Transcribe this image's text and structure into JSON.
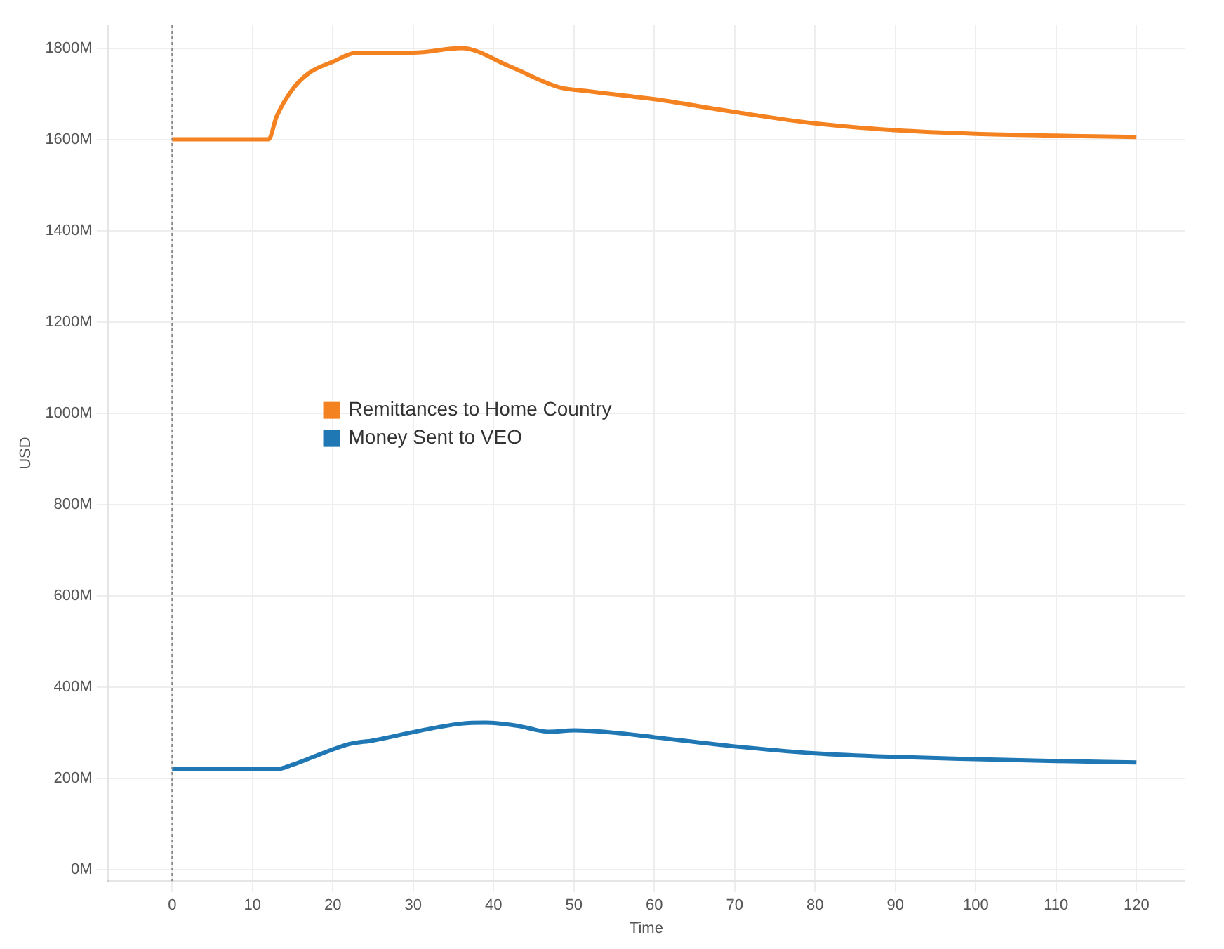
{
  "chart_data": {
    "type": "line",
    "xlabel": "Time",
    "ylabel": "USD",
    "xlim": [
      -8,
      126
    ],
    "xticks": [
      0,
      10,
      20,
      30,
      40,
      50,
      60,
      70,
      80,
      90,
      100,
      110,
      120
    ],
    "ylim": [
      -25,
      1850
    ],
    "yticks": [
      {
        "value": 0,
        "label": "0M"
      },
      {
        "value": 200,
        "label": "200M"
      },
      {
        "value": 400,
        "label": "400M"
      },
      {
        "value": 600,
        "label": "600M"
      },
      {
        "value": 800,
        "label": "800M"
      },
      {
        "value": 1000,
        "label": "1000M"
      },
      {
        "value": 1200,
        "label": "1200M"
      },
      {
        "value": 1400,
        "label": "1400M"
      },
      {
        "value": 1600,
        "label": "1600M"
      },
      {
        "value": 1800,
        "label": "1800M"
      }
    ],
    "grid": true,
    "legend": "left",
    "marker": "none",
    "line_style": "solid",
    "ref_lines": [
      {
        "axis": "x",
        "value": 0,
        "color": "#888888",
        "line_style": "dotted"
      }
    ],
    "series": [
      {
        "name": "Remittances to Home Country",
        "color": "#f58220",
        "x": [
          0,
          12,
          13,
          15,
          17,
          20,
          23,
          30,
          36,
          42,
          48,
          52,
          60,
          70,
          80,
          90,
          100,
          110,
          120
        ],
        "values": [
          1600,
          1600,
          1650,
          1710,
          1745,
          1770,
          1790,
          1790,
          1800,
          1760,
          1715,
          1705,
          1688,
          1660,
          1635,
          1620,
          1612,
          1608,
          1605
        ]
      },
      {
        "name": "Money Sent to VEO",
        "color": "#1f77b4",
        "x": [
          0,
          13,
          15,
          18,
          22,
          25,
          31,
          36,
          39,
          43,
          47,
          50,
          55,
          60,
          70,
          80,
          90,
          100,
          110,
          120
        ],
        "values": [
          220,
          220,
          230,
          250,
          275,
          283,
          305,
          320,
          322,
          315,
          302,
          305,
          300,
          290,
          270,
          255,
          247,
          242,
          238,
          235
        ]
      }
    ]
  }
}
